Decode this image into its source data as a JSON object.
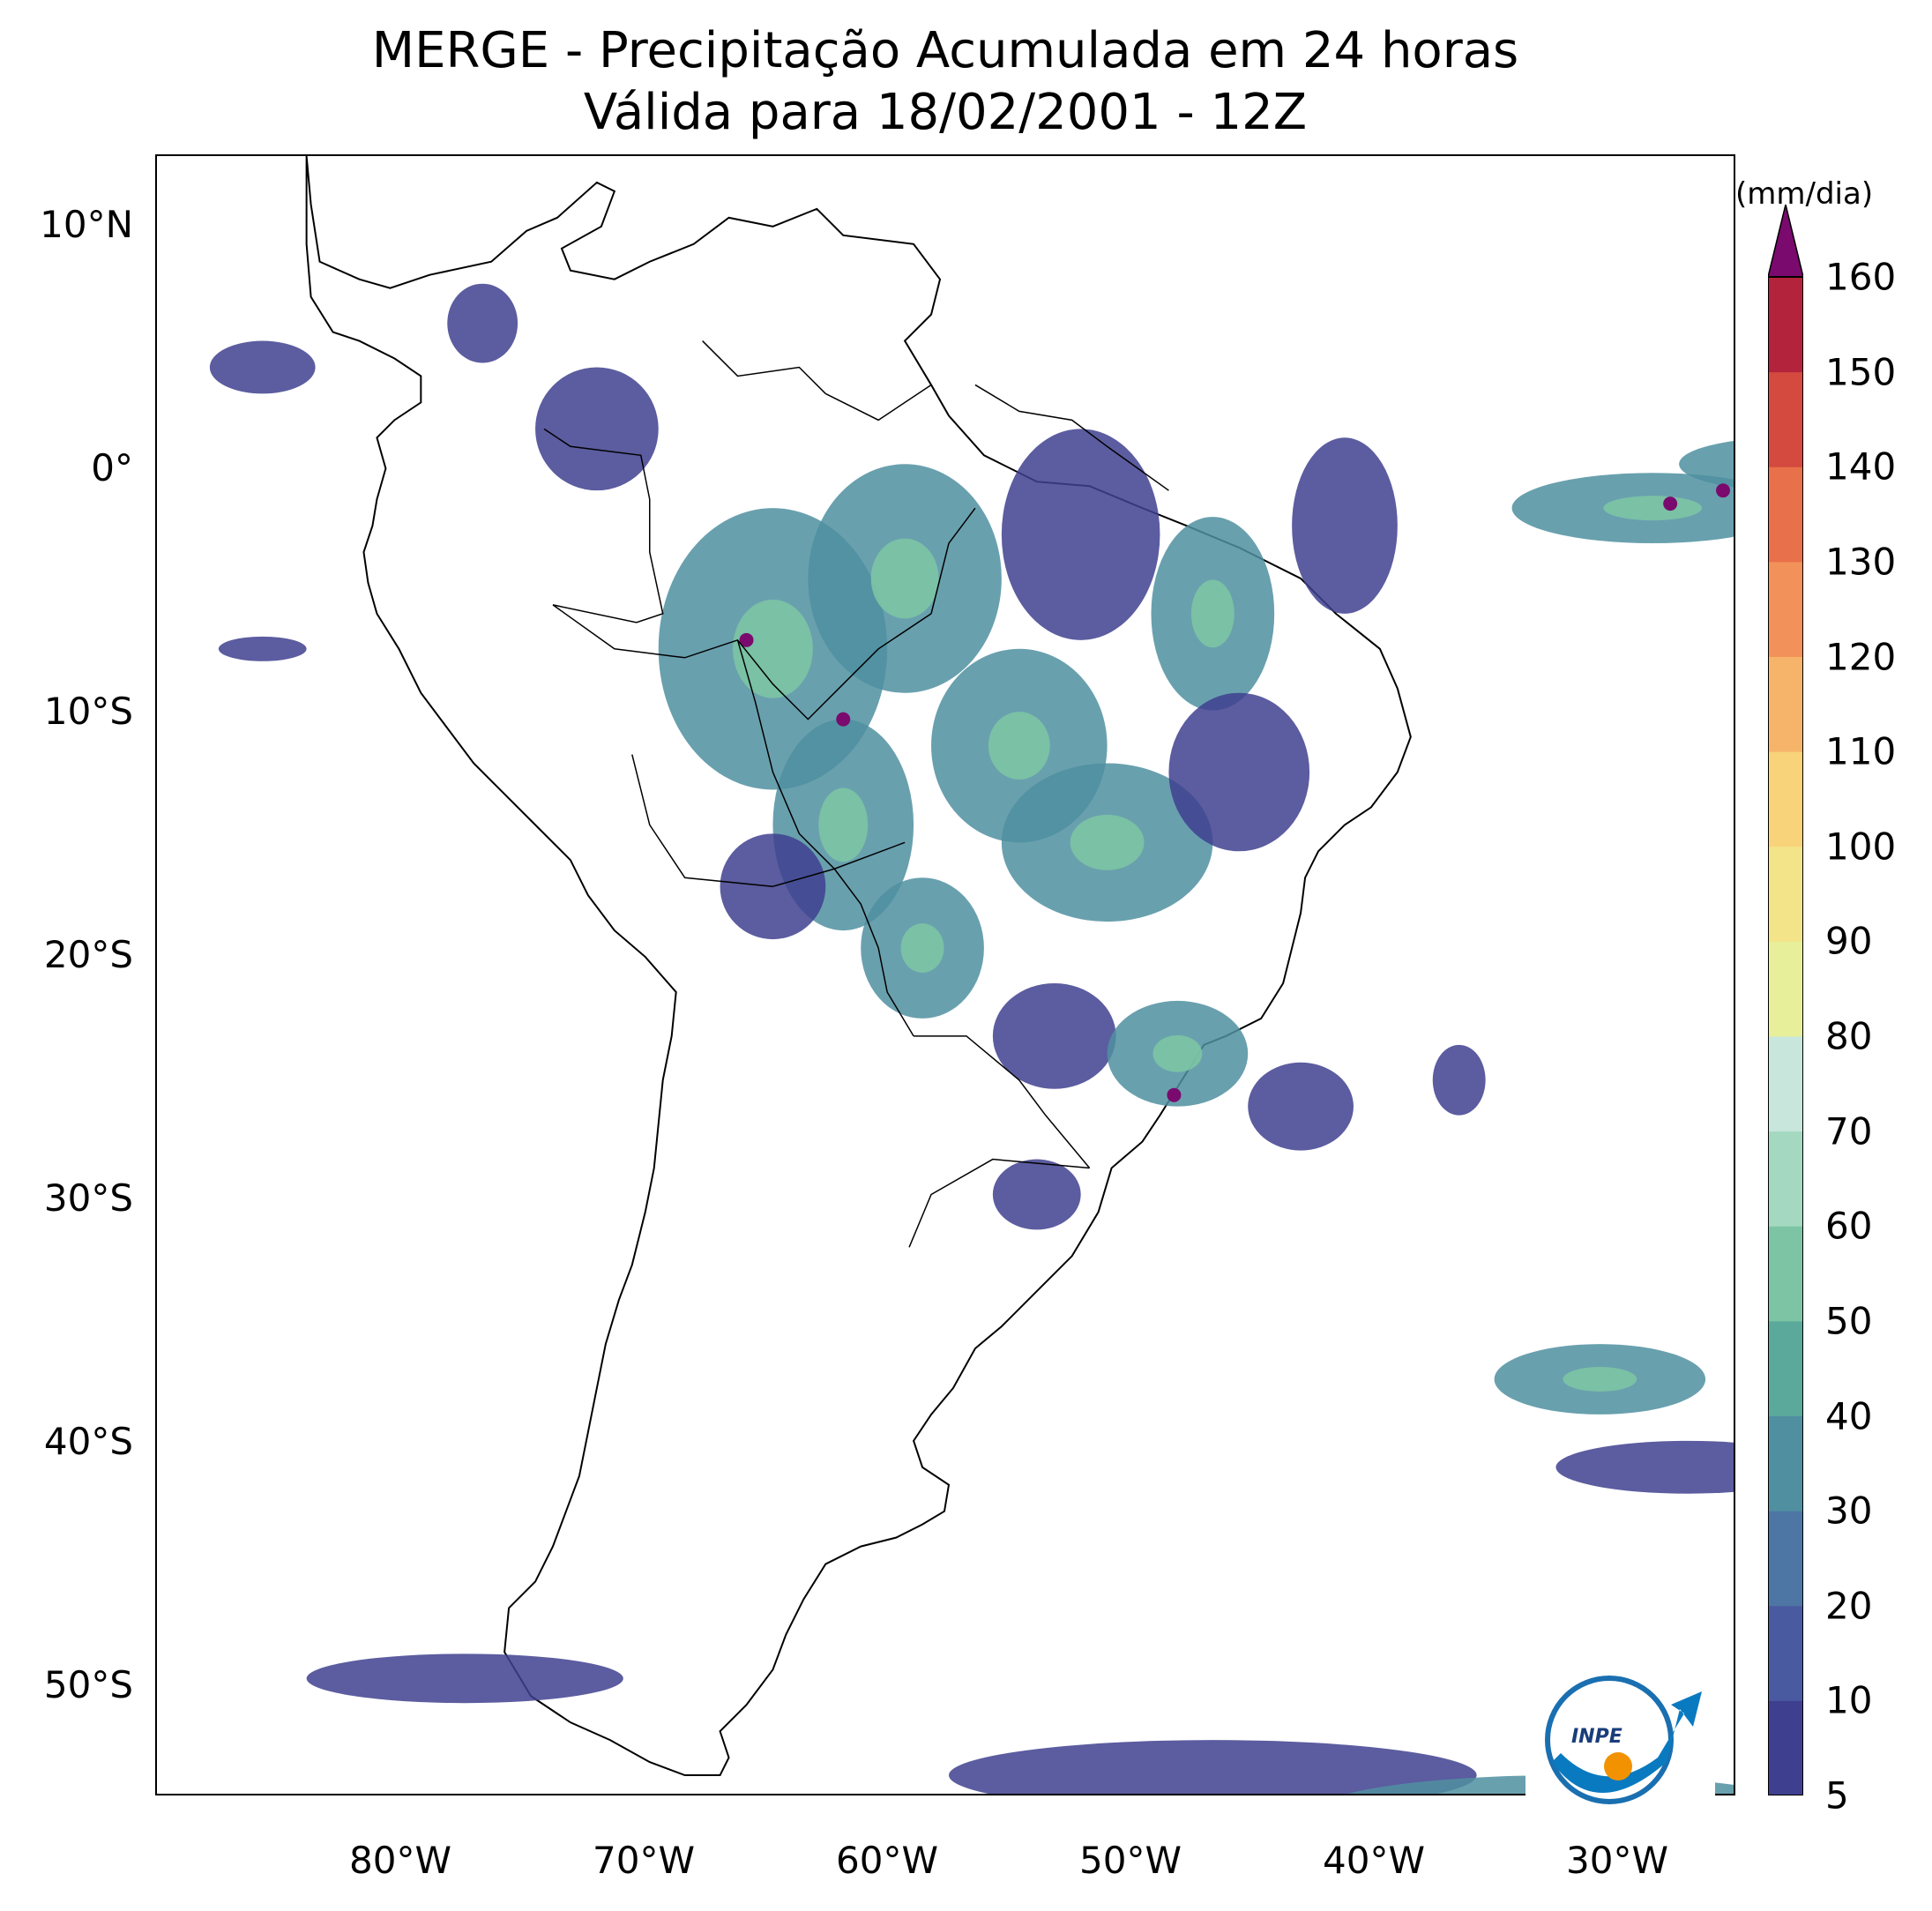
{
  "title": {
    "line1": "MERGE - Precipitação Acumulada em 24 horas",
    "line2": "Válida para 18/02/2001 - 12Z"
  },
  "axes": {
    "lat_labels": [
      "10°N",
      "0°",
      "10°S",
      "20°S",
      "30°S",
      "40°S",
      "50°S"
    ],
    "lon_labels": [
      "80°W",
      "70°W",
      "60°W",
      "50°W",
      "40°W",
      "30°W"
    ]
  },
  "colorbar": {
    "units": "(mm/dia)",
    "tick_labels": [
      "5",
      "10",
      "20",
      "30",
      "40",
      "50",
      "60",
      "70",
      "80",
      "90",
      "100",
      "110",
      "120",
      "130",
      "140",
      "150",
      "160"
    ],
    "levels": [
      5,
      10,
      20,
      30,
      40,
      50,
      60,
      70,
      80,
      90,
      100,
      110,
      120,
      130,
      140,
      150,
      160
    ],
    "colors": [
      "#3f3f8f",
      "#4a5aa0",
      "#4e76a4",
      "#4f8fa0",
      "#5aa99b",
      "#7cc4a4",
      "#a4d8c0",
      "#c8e6dc",
      "#e7ef9a",
      "#f3e48a",
      "#f8d37a",
      "#f6b46a",
      "#f2925a",
      "#e8704a",
      "#d44a3e",
      "#b4233c",
      "#7a0a6e"
    ],
    "extend_color": "#7a0a6e"
  },
  "logo": {
    "text": "INPE"
  }
}
